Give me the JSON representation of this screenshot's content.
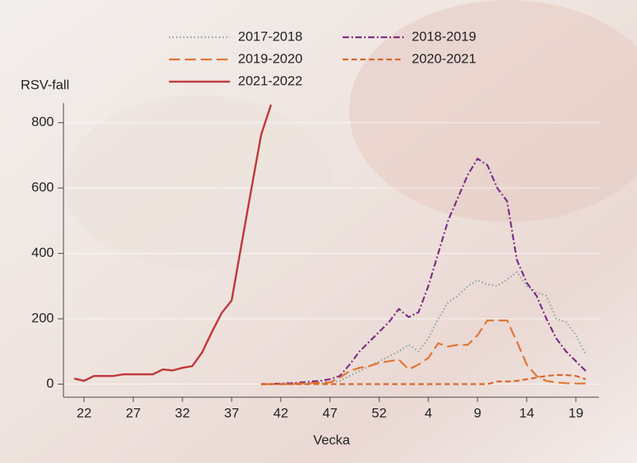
{
  "chart_data": {
    "type": "line",
    "ylabel": "RSV-fall",
    "xlabel": "Vecka",
    "categories": [
      null,
      "22",
      null,
      null,
      null,
      null,
      "27",
      null,
      null,
      null,
      null,
      "32",
      null,
      null,
      null,
      null,
      "37",
      null,
      null,
      null,
      null,
      "42",
      null,
      null,
      null,
      null,
      "47",
      null,
      null,
      null,
      null,
      "52",
      null,
      null,
      null,
      null,
      "4",
      null,
      null,
      null,
      null,
      "9",
      null,
      null,
      null,
      null,
      "14",
      null,
      null,
      null,
      null,
      "19",
      null
    ],
    "ylim": [
      -40,
      860
    ],
    "yticks": [
      0,
      200,
      400,
      600,
      800
    ],
    "grid": true,
    "series": [
      {
        "name": "2017-2018",
        "color": "#8aa597",
        "linestyle": "dotted",
        "values": [
          null,
          null,
          null,
          null,
          null,
          null,
          null,
          null,
          null,
          null,
          null,
          null,
          null,
          null,
          null,
          null,
          null,
          null,
          null,
          0,
          0,
          0,
          0,
          0,
          2,
          3,
          5,
          10,
          25,
          40,
          55,
          70,
          85,
          100,
          120,
          100,
          140,
          200,
          250,
          270,
          300,
          318,
          305,
          300,
          320,
          343,
          300,
          280,
          270,
          200,
          190,
          150,
          90
        ]
      },
      {
        "name": "2018-2019",
        "color": "#7b2d83",
        "linestyle": "dashdot",
        "values": [
          null,
          null,
          null,
          null,
          null,
          null,
          null,
          null,
          null,
          null,
          null,
          null,
          null,
          null,
          null,
          null,
          null,
          null,
          null,
          0,
          0,
          2,
          3,
          5,
          8,
          10,
          15,
          25,
          60,
          100,
          130,
          160,
          190,
          230,
          205,
          220,
          300,
          400,
          500,
          570,
          640,
          690,
          670,
          600,
          560,
          380,
          310,
          270,
          200,
          140,
          100,
          70,
          40
        ]
      },
      {
        "name": "2019-2020",
        "color": "#e2732e",
        "linestyle": "longdash",
        "values": [
          null,
          null,
          null,
          null,
          null,
          null,
          null,
          null,
          null,
          null,
          null,
          null,
          null,
          null,
          null,
          null,
          null,
          null,
          null,
          0,
          0,
          0,
          0,
          2,
          3,
          5,
          5,
          20,
          40,
          50,
          55,
          65,
          70,
          75,
          45,
          60,
          80,
          125,
          115,
          120,
          120,
          150,
          195,
          195,
          195,
          130,
          60,
          25,
          10,
          5,
          3,
          2,
          2
        ]
      },
      {
        "name": "2020-2021",
        "color": "#d9642a",
        "linestyle": "dashed",
        "values": [
          null,
          null,
          null,
          null,
          null,
          null,
          null,
          null,
          null,
          null,
          null,
          null,
          null,
          null,
          null,
          null,
          null,
          null,
          null,
          0,
          0,
          0,
          0,
          0,
          0,
          0,
          0,
          0,
          0,
          0,
          0,
          0,
          0,
          0,
          0,
          0,
          0,
          0,
          0,
          0,
          0,
          0,
          0,
          8,
          8,
          10,
          15,
          20,
          25,
          28,
          28,
          25,
          15
        ]
      },
      {
        "name": "2021-2022",
        "color": "#c0393b",
        "linestyle": "solid",
        "values": [
          17,
          10,
          25,
          25,
          25,
          30,
          30,
          30,
          30,
          45,
          42,
          50,
          55,
          97,
          160,
          218,
          256,
          427,
          596,
          763,
          855,
          null,
          null,
          null,
          null,
          null,
          null,
          null,
          null,
          null,
          null,
          null,
          null,
          null,
          null,
          null,
          null,
          null,
          null,
          null,
          null,
          null,
          null,
          null,
          null,
          null,
          null,
          null,
          null,
          null,
          null,
          null,
          null
        ]
      }
    ]
  }
}
